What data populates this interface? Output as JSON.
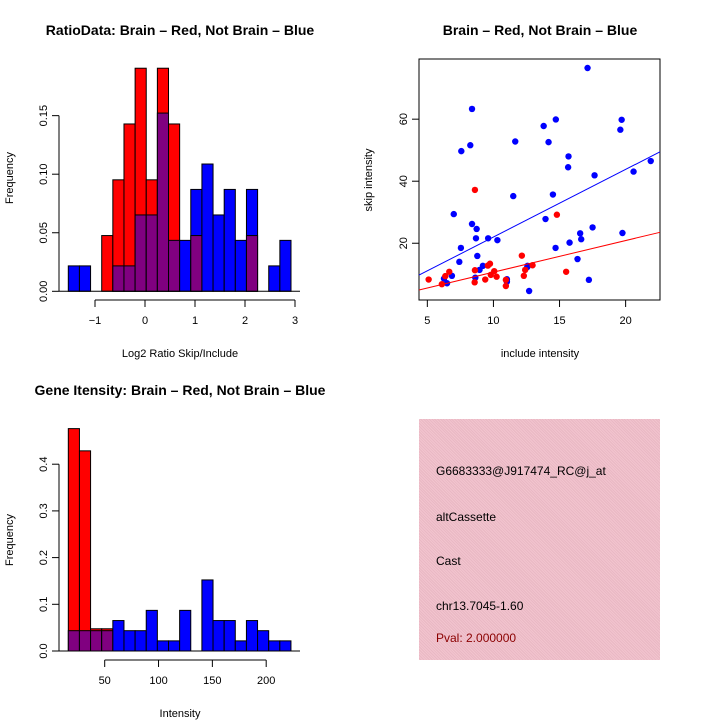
{
  "colors": {
    "brain": "#ff0000",
    "not_brain": "#0000ff",
    "overlap": "#800080",
    "panel": "#f0c0cc",
    "pval": "#8b0000"
  },
  "chart_data": [
    {
      "type": "bar",
      "title": "RatioData: Brain – Red, Not Brain – Blue",
      "xlabel": "Log2 Ratio Skip/Include",
      "ylabel": "Frequency",
      "bin_start": -1.534,
      "bin_width": 0.2227,
      "xticks": [
        -1,
        0,
        1,
        2,
        3
      ],
      "xtick_labels": [
        "−1",
        "0",
        "1",
        "2",
        "3"
      ],
      "yticks": [
        0,
        0.05,
        0.1,
        0.15
      ],
      "ytick_labels": [
        "0.00",
        "0.05",
        "0.10",
        "0.15"
      ],
      "ylim": [
        0,
        0.19
      ],
      "series": [
        {
          "name": "Brain",
          "color": "#ff0000",
          "values": [
            0,
            0,
            0,
            0.0476,
            0.0952,
            0.1429,
            0.1905,
            0.0952,
            0.1905,
            0.1429,
            0,
            0.0476,
            0,
            0,
            0,
            0,
            0.0476,
            0,
            0,
            0
          ]
        },
        {
          "name": "Not Brain",
          "color": "#0000ff",
          "values": [
            0.0217,
            0.0217,
            0,
            0,
            0.0217,
            0.0217,
            0.0652,
            0.0652,
            0.1522,
            0.0435,
            0.0435,
            0.087,
            0.1087,
            0.0652,
            0.087,
            0.0435,
            0.087,
            0,
            0.0217,
            0.0435
          ]
        }
      ]
    },
    {
      "type": "scatter",
      "title": "Brain – Red, Not Brain – Blue",
      "xlabel": "include intensity",
      "ylabel": "skip intensity",
      "xlim": [
        4.37,
        22.6
      ],
      "ylim": [
        1.7,
        79.4
      ],
      "xticks": [
        5,
        10,
        15,
        20
      ],
      "xtick_labels": [
        "5",
        "10",
        "15",
        "20"
      ],
      "yticks": [
        20,
        40,
        60
      ],
      "ytick_labels": [
        "20",
        "40",
        "60"
      ],
      "series": [
        {
          "name": "Not Brain",
          "color": "#0000ff",
          "fit": {
            "slope": 2.18,
            "intercept": 0.2
          },
          "points": [
            [
              17.12,
              76.5
            ],
            [
              8.38,
              63.3
            ],
            [
              19.7,
              59.8
            ],
            [
              14.72,
              59.9
            ],
            [
              13.8,
              57.8
            ],
            [
              19.6,
              56.6
            ],
            [
              11.65,
              52.8
            ],
            [
              14.17,
              52.6
            ],
            [
              8.25,
              51.6
            ],
            [
              7.57,
              49.7
            ],
            [
              15.68,
              48.0
            ],
            [
              15.65,
              44.5
            ],
            [
              21.9,
              46.5
            ],
            [
              20.6,
              43.1
            ],
            [
              17.65,
              41.9
            ],
            [
              11.5,
              35.2
            ],
            [
              14.5,
              35.7
            ],
            [
              7.0,
              29.4
            ],
            [
              13.94,
              27.8
            ],
            [
              8.38,
              26.2
            ],
            [
              8.73,
              24.6
            ],
            [
              17.5,
              25.1
            ],
            [
              19.76,
              23.3
            ],
            [
              16.56,
              23.2
            ],
            [
              16.64,
              21.3
            ],
            [
              8.68,
              21.6
            ],
            [
              9.6,
              21.6
            ],
            [
              10.3,
              21.0
            ],
            [
              15.76,
              20.2
            ],
            [
              7.54,
              18.5
            ],
            [
              14.7,
              18.5
            ],
            [
              8.78,
              15.9
            ],
            [
              7.42,
              14.0
            ],
            [
              16.36,
              14.9
            ],
            [
              9.2,
              12.7
            ],
            [
              8.95,
              11.4
            ],
            [
              12.58,
              12.7
            ],
            [
              12.56,
              12.3
            ],
            [
              8.63,
              8.9
            ],
            [
              6.86,
              9.5
            ],
            [
              6.26,
              8.6
            ],
            [
              6.49,
              7.1
            ],
            [
              11.02,
              8.4
            ],
            [
              11.02,
              7.6
            ],
            [
              17.22,
              8.2
            ],
            [
              12.7,
              4.6
            ]
          ]
        },
        {
          "name": "Brain",
          "color": "#ff0000",
          "fit": {
            "slope": 1.02,
            "intercept": 0.47
          },
          "points": [
            [
              8.6,
              37.2
            ],
            [
              14.8,
              29.2
            ],
            [
              12.15,
              16.0
            ],
            [
              9.74,
              13.4
            ],
            [
              9.58,
              12.8
            ],
            [
              12.96,
              12.9
            ],
            [
              12.4,
              11.4
            ],
            [
              8.6,
              11.3
            ],
            [
              6.66,
              10.8
            ],
            [
              10.06,
              11.0
            ],
            [
              15.5,
              10.8
            ],
            [
              9.8,
              9.8
            ],
            [
              10.24,
              9.2
            ],
            [
              12.3,
              9.5
            ],
            [
              6.36,
              9.4
            ],
            [
              5.1,
              8.3
            ],
            [
              9.38,
              8.3
            ],
            [
              6.1,
              6.8
            ],
            [
              8.58,
              7.4
            ],
            [
              10.94,
              6.2
            ],
            [
              10.94,
              8.2
            ]
          ]
        }
      ]
    },
    {
      "type": "bar",
      "title": "Gene Itensity: Brain – Red, Not Brain – Blue",
      "xlabel": "Intensity",
      "ylabel": "Frequency",
      "bin_start": 16.2,
      "bin_width": 10.34,
      "xticks": [
        50,
        100,
        150,
        200
      ],
      "xtick_labels": [
        "50",
        "100",
        "150",
        "200"
      ],
      "yticks": [
        0,
        0.1,
        0.2,
        0.3,
        0.4
      ],
      "ytick_labels": [
        "0.0",
        "0.1",
        "0.2",
        "0.3",
        "0.4"
      ],
      "ylim": [
        0,
        0.48
      ],
      "series": [
        {
          "name": "Brain",
          "color": "#ff0000",
          "values": [
            0.4762,
            0.4286,
            0.0476,
            0.0476,
            0,
            0,
            0,
            0,
            0,
            0,
            0,
            0,
            0,
            0,
            0,
            0,
            0,
            0,
            0,
            0
          ]
        },
        {
          "name": "Not Brain",
          "color": "#0000ff",
          "values": [
            0.0435,
            0.0435,
            0.0435,
            0.0435,
            0.0652,
            0.0435,
            0.0435,
            0.087,
            0.0217,
            0.0217,
            0.087,
            0,
            0.1522,
            0.0652,
            0.0652,
            0.0217,
            0.0652,
            0.0435,
            0.0217,
            0.0217
          ]
        }
      ]
    }
  ],
  "info_panel": {
    "probe": "G6683333@J917474_RC@j_at",
    "event_type": "altCassette",
    "class": "Cast",
    "location": "chr13.7045-1.60",
    "pval": "Pval: 2.000000"
  }
}
